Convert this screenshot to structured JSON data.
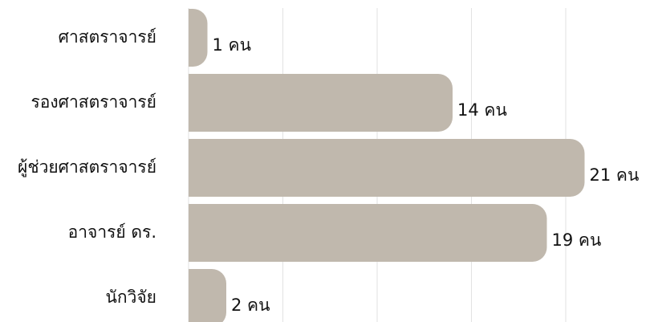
{
  "chart_data": {
    "type": "bar",
    "orientation": "horizontal",
    "categories": [
      "ศาสตราจารย์",
      "รองศาสตราจารย์",
      "ผู้ช่วยศาสตราจารย์",
      "อาจารย์ ดร.",
      "นักวิจัย"
    ],
    "values": [
      1,
      14,
      21,
      19,
      2
    ],
    "value_labels": [
      "1 คน",
      "14 คน",
      "21 คน",
      "19 คน",
      "2 คน"
    ],
    "color": "#c0b8ad",
    "xlim": [
      0,
      24
    ],
    "xticks": [
      0,
      5,
      10,
      15,
      20
    ],
    "grid": true
  }
}
